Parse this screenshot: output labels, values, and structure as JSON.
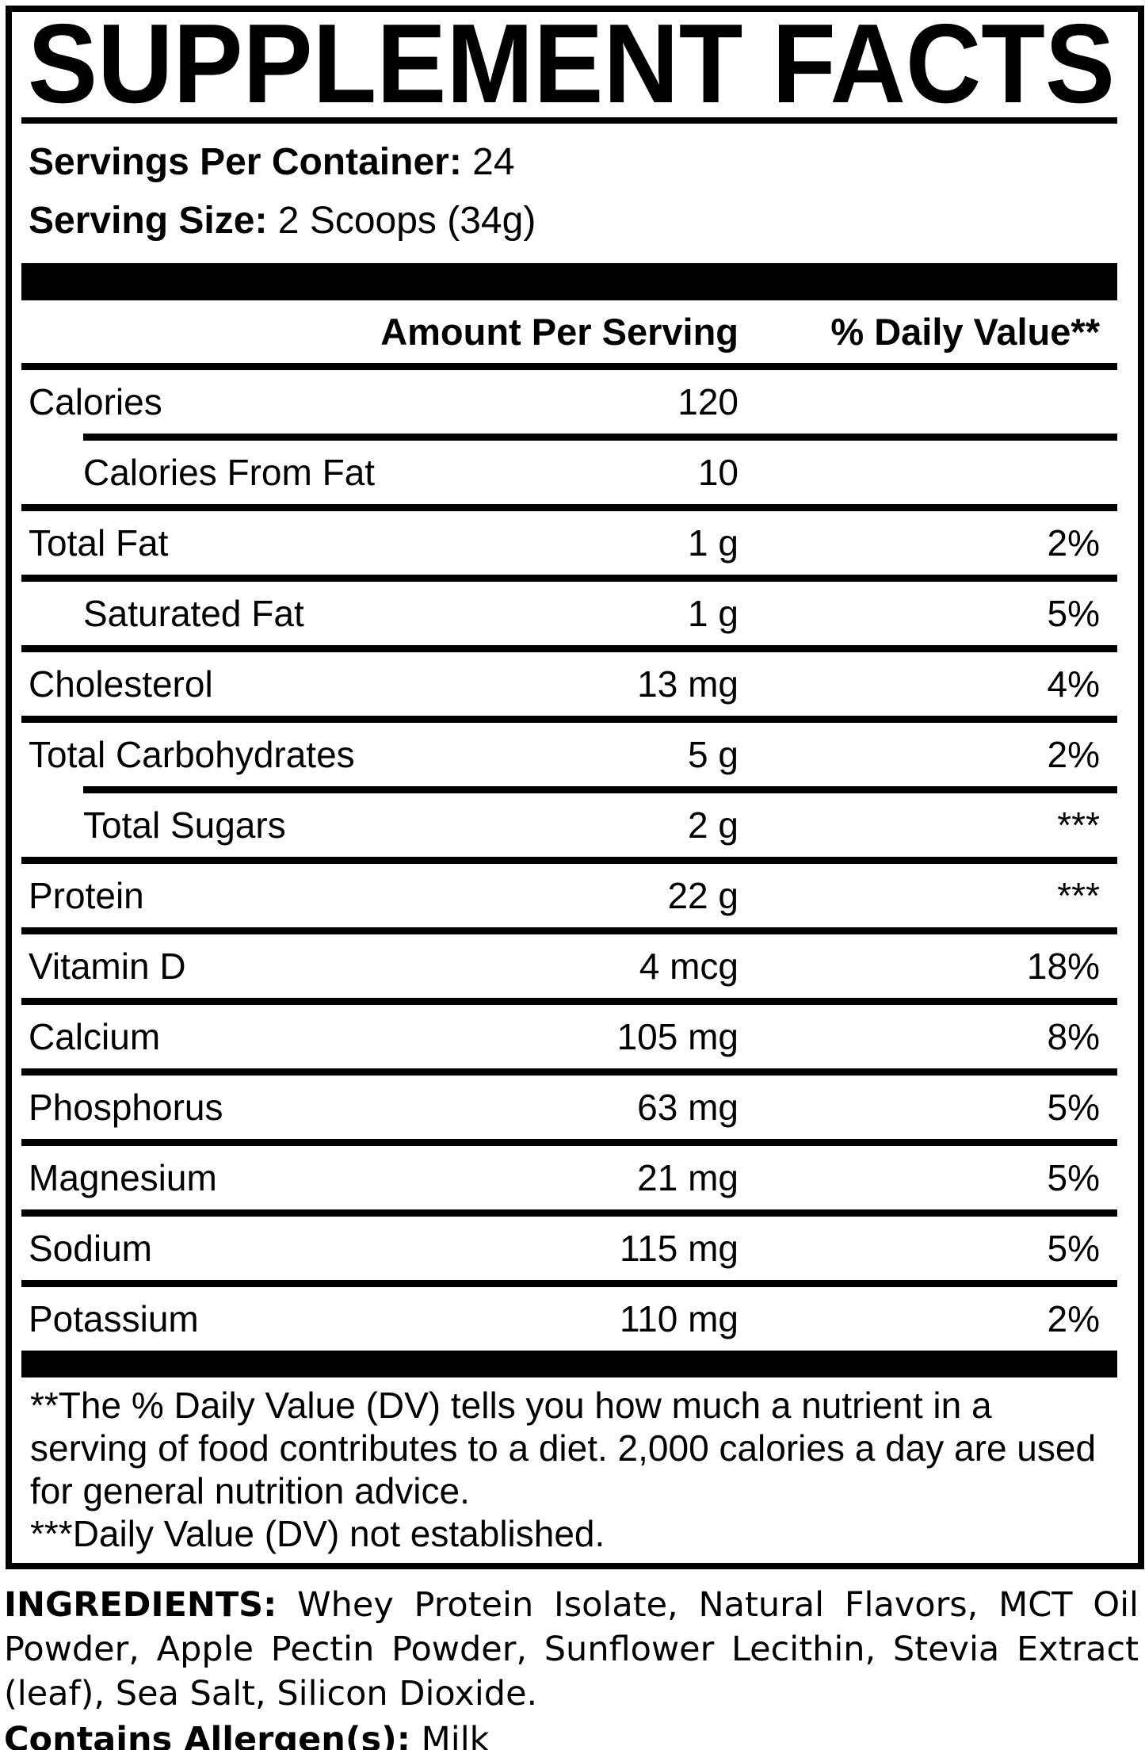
{
  "label": {
    "title": "SUPPLEMENT FACTS",
    "servings_per_container_label": "Servings Per Container:",
    "servings_per_container_value": "24",
    "serving_size_label": "Serving Size:",
    "serving_size_value": "2 Scoops (34g)",
    "header": {
      "amount": "Amount Per Serving",
      "daily_value": "% Daily Value**"
    },
    "rows": [
      {
        "name": "Calories",
        "amount": "120",
        "dv": "",
        "sub": false,
        "rule_after": "indented"
      },
      {
        "name": "Calories From Fat",
        "amount": "10",
        "dv": "",
        "sub": true,
        "rule_after": "full"
      },
      {
        "name": "Total Fat",
        "amount": "1 g",
        "dv": "2%",
        "sub": false,
        "rule_after": "full"
      },
      {
        "name": "Saturated Fat",
        "amount": "1 g",
        "dv": "5%",
        "sub": true,
        "rule_after": "full"
      },
      {
        "name": "Cholesterol",
        "amount": "13 mg",
        "dv": "4%",
        "sub": false,
        "rule_after": "full"
      },
      {
        "name": "Total Carbohydrates",
        "amount": "5 g",
        "dv": "2%",
        "sub": false,
        "rule_after": "indented"
      },
      {
        "name": "Total Sugars",
        "amount": "2 g",
        "dv": "***",
        "sub": true,
        "rule_after": "full"
      },
      {
        "name": "Protein",
        "amount": "22 g",
        "dv": "***",
        "sub": false,
        "rule_after": "full"
      },
      {
        "name": "Vitamin D",
        "amount": "4 mcg",
        "dv": "18%",
        "sub": false,
        "rule_after": "full"
      },
      {
        "name": "Calcium",
        "amount": "105 mg",
        "dv": "8%",
        "sub": false,
        "rule_after": "full"
      },
      {
        "name": "Phosphorus",
        "amount": "63 mg",
        "dv": "5%",
        "sub": false,
        "rule_after": "full"
      },
      {
        "name": "Magnesium",
        "amount": "21 mg",
        "dv": "5%",
        "sub": false,
        "rule_after": "full"
      },
      {
        "name": "Sodium",
        "amount": "115 mg",
        "dv": "5%",
        "sub": false,
        "rule_after": "full"
      },
      {
        "name": "Potassium",
        "amount": "110 mg",
        "dv": "2%",
        "sub": false,
        "rule_after": "none"
      }
    ],
    "footnote_dv": "**The % Daily Value (DV) tells you how much a nutrient in a serving of food contributes to a diet. 2,000 calories a day are used for general nutrition advice.",
    "footnote_not_established": "***Daily Value (DV) not established."
  },
  "ingredients": {
    "label": "INGREDIENTS:",
    "text": "Whey Protein Isolate, Natural Flavors, MCT Oil Powder, Apple Pectin Powder, Sunflower Lecithin, Stevia Extract (leaf), Sea Salt, Silicon Dioxide.",
    "allergen_label": "Contains Allergen(s):",
    "allergen_value": "Milk"
  },
  "colors": {
    "ink": "#000000",
    "paper": "#ffffff"
  }
}
